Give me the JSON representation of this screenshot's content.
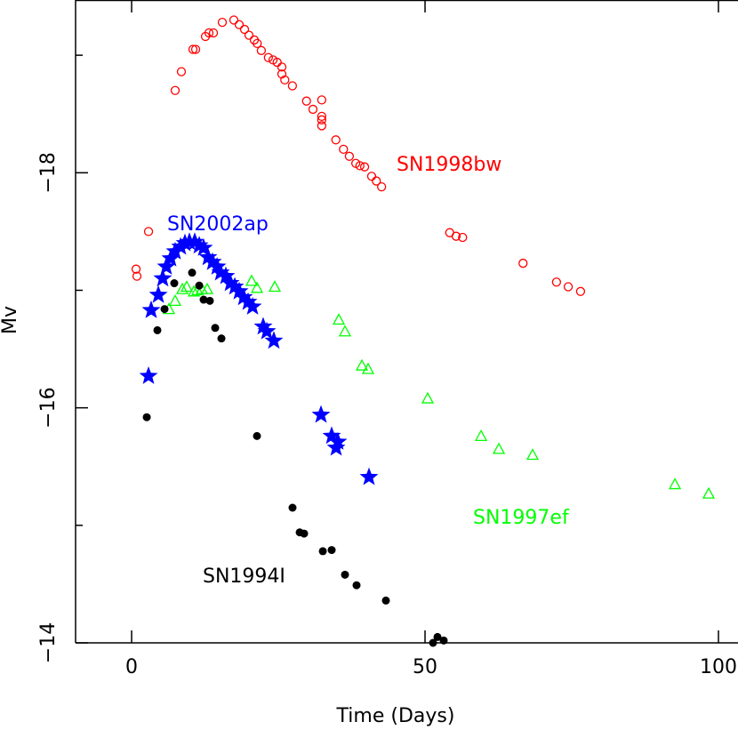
{
  "chart_data": {
    "type": "scatter",
    "xlabel": "Time (Days)",
    "ylabel": "Mv",
    "xlim": [
      -9.55,
      103.33
    ],
    "ylim": [
      -14,
      -19.47
    ],
    "xticks": [
      0,
      50,
      100
    ],
    "yticks": [
      {
        "value": -18,
        "label": "−18"
      },
      {
        "value": -16,
        "label": "−16"
      },
      {
        "value": -14,
        "label": "−14"
      }
    ],
    "minor_yticks": [
      -19,
      -17,
      -15
    ],
    "series": [
      {
        "name": "SN1998bw",
        "color": "#ff0000",
        "marker": "open-circle",
        "x": [
          0.76,
          0.91,
          2.88,
          7.42,
          8.48,
          10.45,
          10.91,
          12.58,
          13.18,
          13.94,
          15.45,
          17.42,
          18.33,
          19.24,
          20.0,
          20.9,
          21.4,
          22.1,
          23.3,
          24.1,
          24.8,
          25.6,
          25.6,
          26.1,
          27.4,
          29.8,
          30.9,
          32.4,
          32.4,
          32.4,
          32.4,
          34.8,
          36.1,
          37.1,
          38.2,
          38.9,
          39.7,
          40.9,
          41.7,
          42.6,
          54.2,
          55.3,
          56.4,
          66.7,
          72.4,
          74.4,
          76.5
        ],
        "values": [
          -17.18,
          -17.12,
          -17.5,
          -18.7,
          -18.86,
          -19.05,
          -19.05,
          -19.16,
          -19.19,
          -19.19,
          -19.28,
          -19.3,
          -19.26,
          -19.22,
          -19.17,
          -19.13,
          -19.1,
          -19.04,
          -18.98,
          -18.96,
          -18.94,
          -18.9,
          -18.84,
          -18.79,
          -18.74,
          -18.61,
          -18.54,
          -18.62,
          -18.48,
          -18.45,
          -18.4,
          -18.28,
          -18.2,
          -18.14,
          -18.08,
          -18.06,
          -18.05,
          -17.97,
          -17.93,
          -17.88,
          -17.49,
          -17.46,
          -17.45,
          -17.23,
          -17.07,
          -17.03,
          -16.99
        ]
      },
      {
        "name": "SN2002ap",
        "color": "#0000ff",
        "marker": "star",
        "x": [
          2.88,
          3.33,
          4.55,
          5.3,
          5.91,
          6.67,
          7.42,
          8.33,
          9.09,
          9.85,
          10.76,
          11.52,
          12.27,
          13.03,
          13.79,
          14.55,
          15.15,
          16.06,
          16.82,
          17.58,
          18.33,
          19.09,
          19.85,
          20.61,
          22.42,
          23.03,
          24.24,
          32.27,
          34.09,
          34.85,
          35.15,
          40.45
        ],
        "values": [
          -16.27,
          -16.83,
          -16.96,
          -17.1,
          -17.2,
          -17.27,
          -17.33,
          -17.37,
          -17.4,
          -17.41,
          -17.41,
          -17.38,
          -17.36,
          -17.28,
          -17.24,
          -17.2,
          -17.15,
          -17.12,
          -17.06,
          -17.03,
          -16.99,
          -16.94,
          -16.9,
          -16.86,
          -16.69,
          -16.65,
          -16.57,
          -15.94,
          -15.76,
          -15.66,
          -15.71,
          -15.41
        ]
      },
      {
        "name": "SN1997ef",
        "color": "#00ff00",
        "marker": "open-triangle",
        "x": [
          6.36,
          7.42,
          8.64,
          9.39,
          10.61,
          11.21,
          11.97,
          12.88,
          20.45,
          21.36,
          24.39,
          35.3,
          36.36,
          39.24,
          40.3,
          50.45,
          59.55,
          62.58,
          68.33,
          92.58,
          98.33
        ],
        "values": [
          -16.84,
          -16.91,
          -17.01,
          -17.03,
          -16.99,
          -17.0,
          -17.01,
          -17.01,
          -17.08,
          -17.02,
          -17.03,
          -16.75,
          -16.65,
          -16.36,
          -16.33,
          -16.08,
          -15.76,
          -15.65,
          -15.6,
          -15.35,
          -15.27
        ]
      },
      {
        "name": "SN1994I",
        "color": "#000000",
        "marker": "filled-circle",
        "x": [
          2.58,
          4.39,
          5.61,
          7.27,
          10.3,
          11.52,
          12.27,
          13.33,
          14.24,
          15.3,
          21.36,
          27.42,
          28.64,
          29.39,
          32.58,
          34.09,
          36.36,
          38.33,
          43.33,
          51.36,
          52.12,
          53.18
        ],
        "values": [
          -15.92,
          -16.66,
          -16.84,
          -17.06,
          -17.15,
          -17.04,
          -16.92,
          -16.91,
          -16.68,
          -16.59,
          -15.76,
          -15.15,
          -14.94,
          -14.93,
          -14.78,
          -14.79,
          -14.58,
          -14.49,
          -14.36,
          -14.0,
          -14.05,
          -14.02
        ]
      }
    ]
  }
}
